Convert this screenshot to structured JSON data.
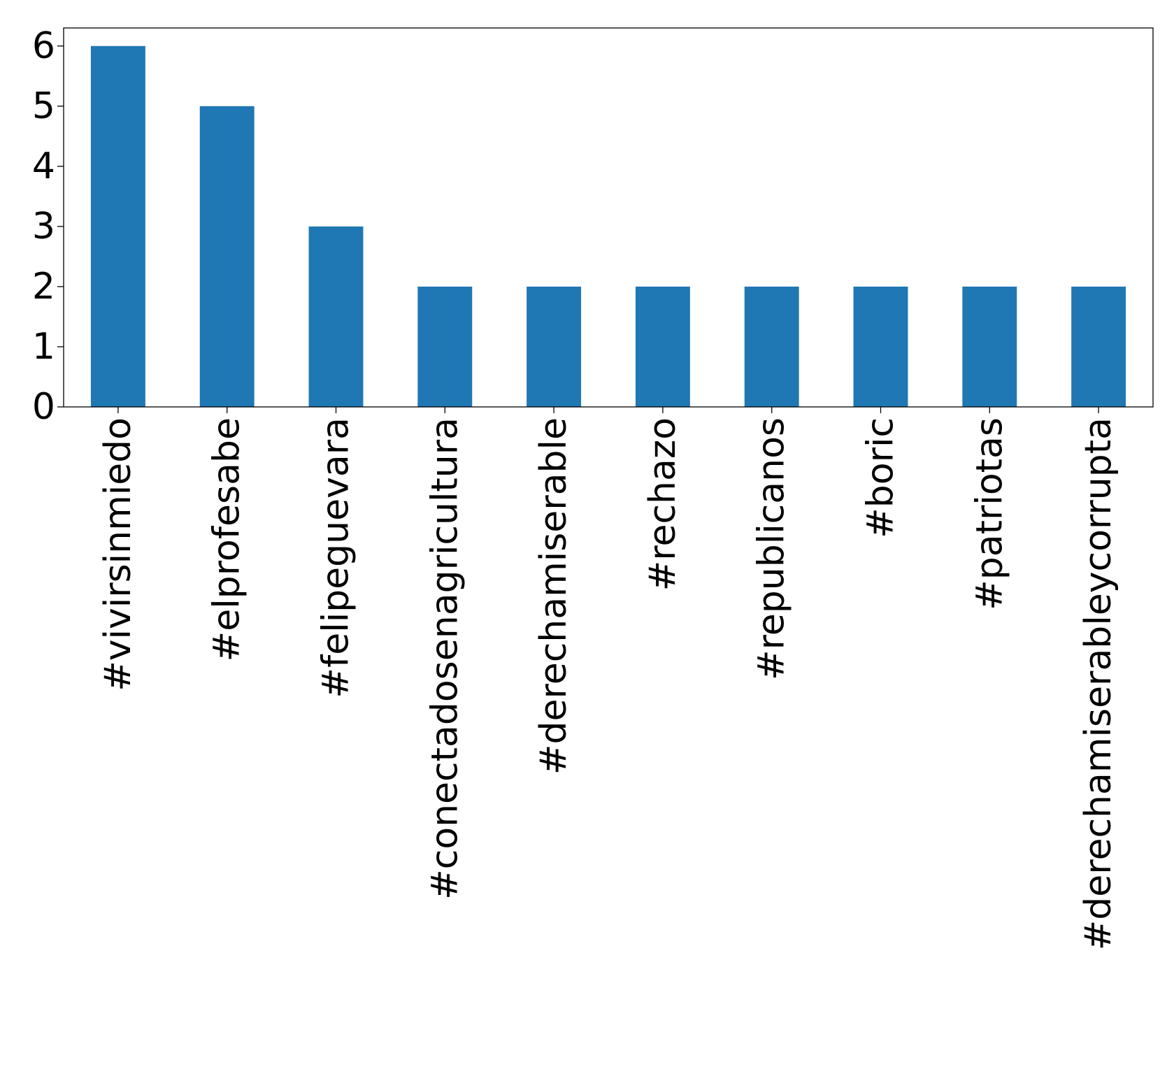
{
  "chart_data": {
    "type": "bar",
    "categories": [
      "#vivirsinmiedo",
      "#elprofesabe",
      "#felipeguevara",
      "#conectadosenagricultura",
      "#derechamiserable",
      "#rechazo",
      "#republicanos",
      "#boric",
      "#patriotas",
      "#derechamiserableycorrupta"
    ],
    "values": [
      6,
      5,
      3,
      2,
      2,
      2,
      2,
      2,
      2,
      2
    ],
    "ylim": [
      0,
      6.3
    ],
    "yticks": [
      "0",
      "1",
      "2",
      "3",
      "4",
      "5",
      "6"
    ],
    "bar_color": "#1f77b4",
    "grid": false,
    "legend": "none",
    "title": "",
    "xlabel": "",
    "ylabel": ""
  }
}
